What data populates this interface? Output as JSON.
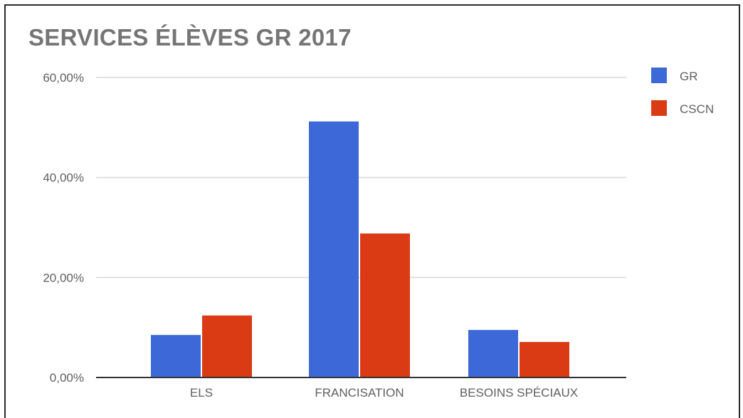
{
  "chart_data": {
    "type": "bar",
    "title": "SERVICES ÉLÈVES GR 2017",
    "xlabel": "",
    "ylabel": "",
    "categories": [
      "ELS",
      "FRANCISATION",
      "BESOINS SPÉCIAUX"
    ],
    "series": [
      {
        "name": "GR",
        "color": "#3c68d8",
        "values": [
          8.5,
          51.2,
          9.5
        ]
      },
      {
        "name": "CSCN",
        "color": "#da3b15",
        "values": [
          12.4,
          28.8,
          7.1
        ]
      }
    ],
    "ylim": [
      0,
      60
    ],
    "yticks": [
      0,
      20,
      40,
      60
    ],
    "ytick_labels": [
      "0,00%",
      "20,00%",
      "40,00%",
      "60,00%"
    ],
    "grid": true,
    "legend": "right",
    "gridline_color": "#d9d9d9",
    "axis_color": "#333333"
  }
}
